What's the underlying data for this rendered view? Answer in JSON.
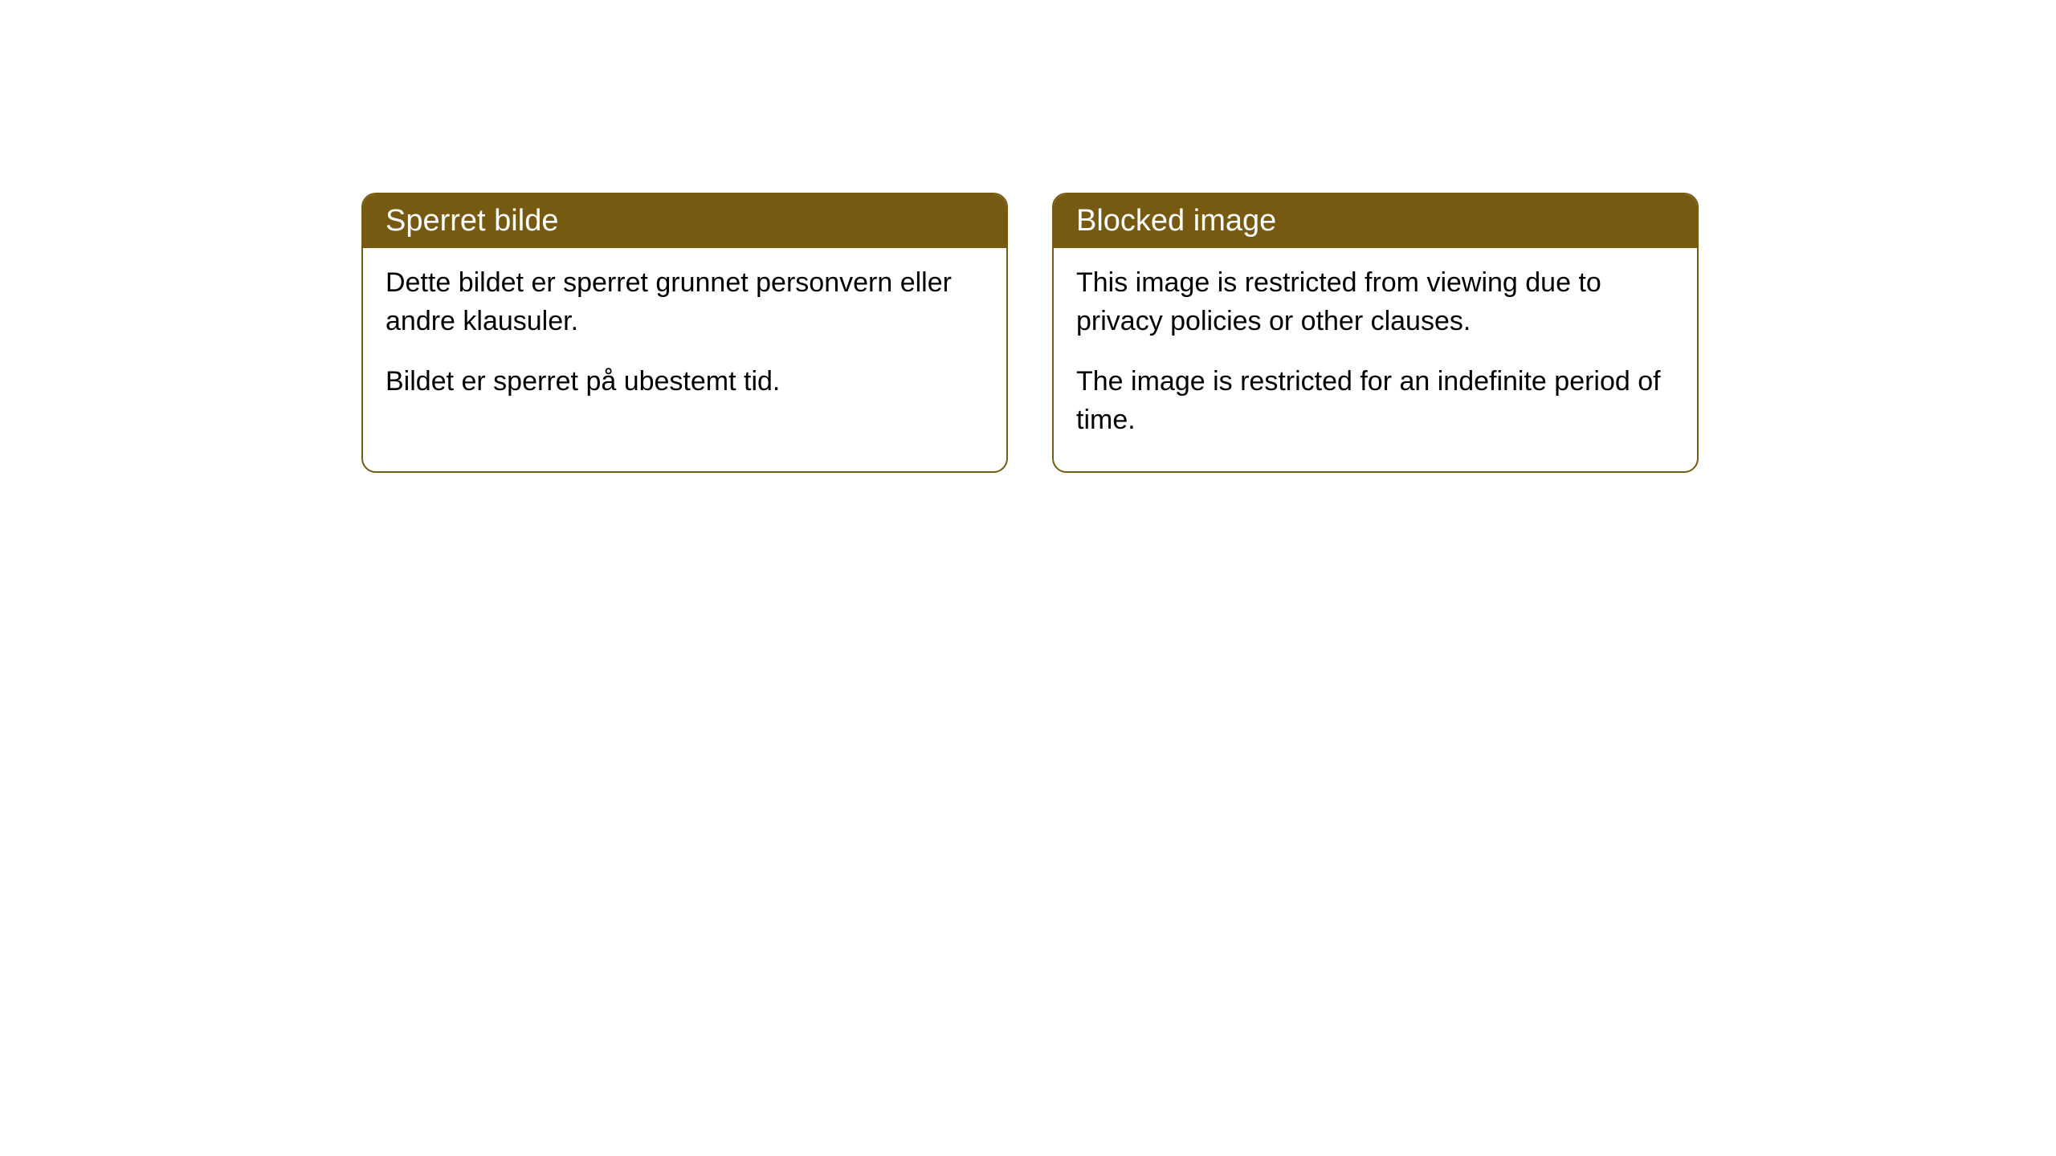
{
  "cards": [
    {
      "title": "Sperret bilde",
      "paragraph1": "Dette bildet er sperret grunnet personvern eller andre klausuler.",
      "paragraph2": "Bildet er sperret på ubestemt tid."
    },
    {
      "title": "Blocked image",
      "paragraph1": "This image is restricted from viewing due to privacy policies or other clauses.",
      "paragraph2": "The image is restricted for an indefinite period of time."
    }
  ],
  "styling": {
    "header_background_color": "#775a11",
    "header_text_color": "#ffffff",
    "border_color": "#775a11",
    "body_background_color": "#ffffff",
    "body_text_color": "#000000",
    "title_fontsize": 38,
    "body_fontsize": 34,
    "border_radius": 18,
    "border_width": 2
  }
}
